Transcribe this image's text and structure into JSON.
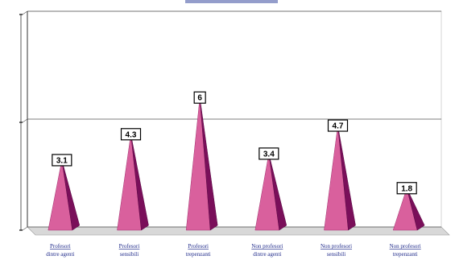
{
  "chart_data": {
    "type": "bar",
    "bar_shape": "pyramid",
    "title": "",
    "xlabel": "",
    "ylabel": "",
    "ylim": [
      0,
      10
    ],
    "grid": true,
    "categories": [
      [
        "Profesori",
        "dintre agenti"
      ],
      [
        "Profesori",
        "sensibili"
      ],
      [
        "Profesori",
        "trepenzanti"
      ],
      [
        "Non profesori",
        "dintre agenti"
      ],
      [
        "Non profesori",
        "sensibili"
      ],
      [
        "Non profesori",
        "trepenzanti"
      ]
    ],
    "values": [
      3.1,
      4.3,
      6,
      3.4,
      4.7,
      1.8
    ],
    "value_labels": [
      "3.1",
      "4.3",
      "6",
      "3.4",
      "4.7",
      "1.8"
    ],
    "colors": {
      "bar_front": "#d9609d",
      "bar_side": "#7a0f5a",
      "floor": "#d8d8d8",
      "axis": "#333333",
      "label_text": "#1f2a8a"
    }
  }
}
